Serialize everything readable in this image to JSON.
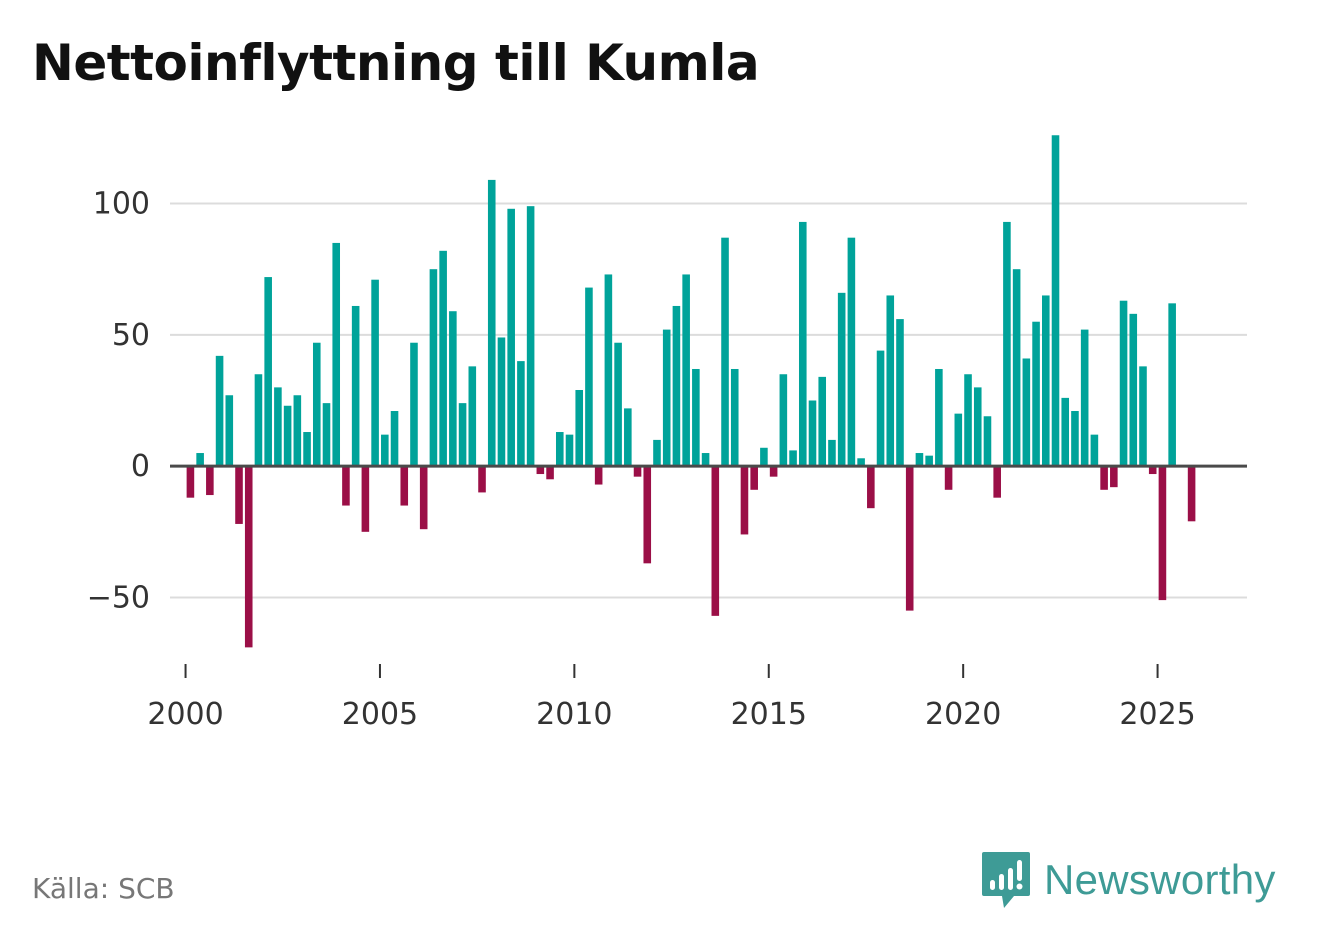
{
  "title": "Nettoinflyttning till Kumla",
  "source": "Källa: SCB",
  "brand": {
    "name": "Newsworthy",
    "icon": "newsworthy-logo-icon",
    "color": "#3e9b96"
  },
  "colors": {
    "positive": "#00a39a",
    "negative": "#9b0f47",
    "grid": "#dcdcdc",
    "zero": "#4a4a4a"
  },
  "chart_data": {
    "type": "bar",
    "title": "Nettoinflyttning till Kumla",
    "xlabel": "",
    "ylabel": "",
    "ylim": [
      -70,
      128
    ],
    "xlim": [
      1999.6,
      2027.3
    ],
    "y_ticks": [
      100,
      50,
      0,
      -50
    ],
    "y_tick_labels": [
      "100",
      "50",
      "0",
      "−50"
    ],
    "x_ticks": [
      2000,
      2005,
      2010,
      2015,
      2020,
      2025
    ],
    "x_tick_labels": [
      "2000",
      "2005",
      "2010",
      "2015",
      "2020",
      "2025"
    ],
    "frequency": "quarterly",
    "start_year": 2000,
    "x": [
      "2000 Q1",
      "2000 Q2",
      "2000 Q3",
      "2000 Q4",
      "2001 Q1",
      "2001 Q2",
      "2001 Q3",
      "2001 Q4",
      "2002 Q1",
      "2002 Q2",
      "2002 Q3",
      "2002 Q4",
      "2003 Q1",
      "2003 Q2",
      "2003 Q3",
      "2003 Q4",
      "2004 Q1",
      "2004 Q2",
      "2004 Q3",
      "2004 Q4",
      "2005 Q1",
      "2005 Q2",
      "2005 Q3",
      "2005 Q4",
      "2006 Q1",
      "2006 Q2",
      "2006 Q3",
      "2006 Q4",
      "2007 Q1",
      "2007 Q2",
      "2007 Q3",
      "2007 Q4",
      "2008 Q1",
      "2008 Q2",
      "2008 Q3",
      "2008 Q4",
      "2009 Q1",
      "2009 Q2",
      "2009 Q3",
      "2009 Q4",
      "2010 Q1",
      "2010 Q2",
      "2010 Q3",
      "2010 Q4",
      "2011 Q1",
      "2011 Q2",
      "2011 Q3",
      "2011 Q4",
      "2012 Q1",
      "2012 Q2",
      "2012 Q3",
      "2012 Q4",
      "2013 Q1",
      "2013 Q2",
      "2013 Q3",
      "2013 Q4",
      "2014 Q1",
      "2014 Q2",
      "2014 Q3",
      "2014 Q4",
      "2015 Q1",
      "2015 Q2",
      "2015 Q3",
      "2015 Q4",
      "2016 Q1",
      "2016 Q2",
      "2016 Q3",
      "2016 Q4",
      "2017 Q1",
      "2017 Q2",
      "2017 Q3",
      "2017 Q4",
      "2018 Q1",
      "2018 Q2",
      "2018 Q3",
      "2018 Q4",
      "2019 Q1",
      "2019 Q2",
      "2019 Q3",
      "2019 Q4",
      "2020 Q1",
      "2020 Q2",
      "2020 Q3",
      "2020 Q4",
      "2021 Q1",
      "2021 Q2",
      "2021 Q3",
      "2021 Q4",
      "2022 Q1",
      "2022 Q2",
      "2022 Q3",
      "2022 Q4",
      "2023 Q1",
      "2023 Q2",
      "2023 Q3",
      "2023 Q4",
      "2024 Q1",
      "2024 Q2",
      "2024 Q3",
      "2024 Q4",
      "2025 Q1",
      "2025 Q2",
      "2025 Q3",
      "2025 Q4"
    ],
    "values": [
      -12,
      5,
      -11,
      42,
      27,
      -22,
      -69,
      35,
      72,
      30,
      23,
      27,
      13,
      47,
      24,
      85,
      -15,
      61,
      -25,
      71,
      12,
      21,
      -15,
      47,
      -24,
      75,
      82,
      59,
      24,
      38,
      -10,
      109,
      49,
      98,
      40,
      99,
      -3,
      -5,
      13,
      12,
      29,
      68,
      -7,
      73,
      47,
      22,
      -4,
      -37,
      10,
      52,
      61,
      73,
      37,
      5,
      -57,
      87,
      37,
      -26,
      -9,
      7,
      -4,
      35,
      6,
      93,
      25,
      34,
      10,
      66,
      87,
      3,
      -16,
      44,
      65,
      56,
      -55,
      5,
      4,
      37,
      -9,
      20,
      35,
      30,
      19,
      -12,
      93,
      75,
      41,
      55,
      65,
      126,
      26,
      21,
      52,
      12,
      -9,
      -8,
      63,
      58,
      38,
      -3,
      -51,
      62,
      0,
      -21
    ]
  }
}
